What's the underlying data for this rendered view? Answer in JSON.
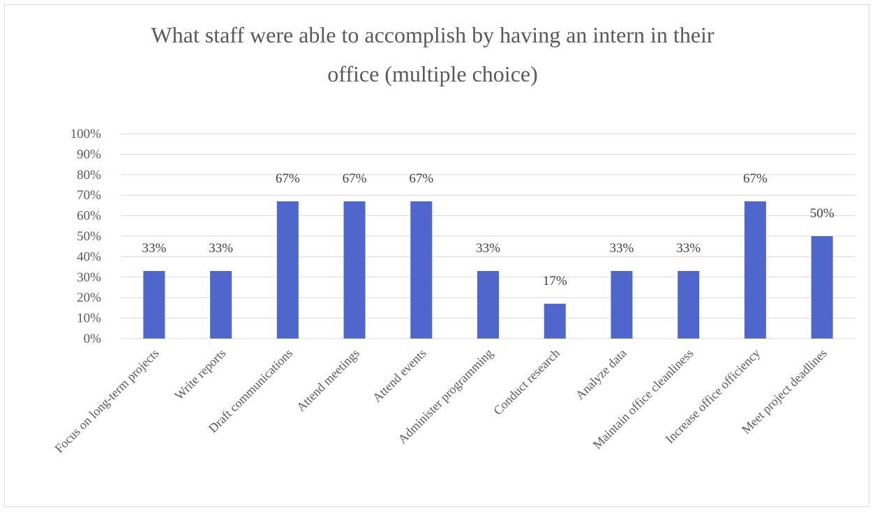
{
  "chart_data": {
    "type": "bar",
    "title_line1": "What staff were able to accomplish by having an intern in their",
    "title_line2": "office (multiple choice)",
    "categories": [
      "Focus on long-term projects",
      "Write reports",
      "Draft communications",
      "Attend meetings",
      "Attend events",
      "Administer programming",
      "Conduct research",
      "Analyze data",
      "Maintain office cleanliness",
      "Increase office officiency",
      "Meet project deadlines"
    ],
    "values": [
      33,
      33,
      67,
      67,
      67,
      33,
      17,
      33,
      33,
      67,
      50
    ],
    "data_labels": [
      "33%",
      "33%",
      "67%",
      "67%",
      "67%",
      "33%",
      "17%",
      "33%",
      "33%",
      "67%",
      "50%"
    ],
    "yticks": [
      "0%",
      "10%",
      "20%",
      "30%",
      "40%",
      "50%",
      "60%",
      "70%",
      "80%",
      "90%",
      "100%"
    ],
    "ylim": [
      0,
      100
    ],
    "grid": true,
    "legend": "none",
    "bar_color": "#4f67cc",
    "grid_color": "#d9d9d9"
  }
}
